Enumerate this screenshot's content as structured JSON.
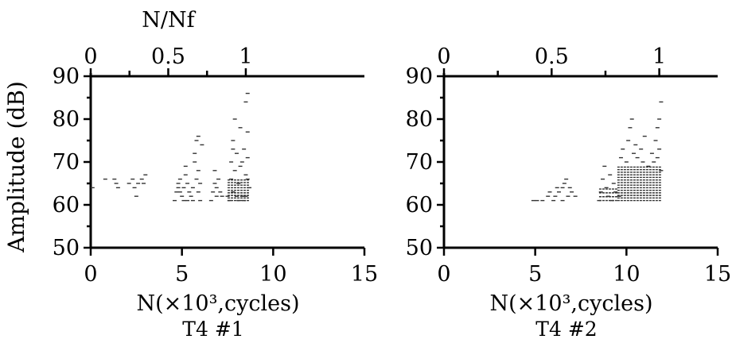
{
  "chart_data": [
    {
      "type": "scatter",
      "title": "T4 #1",
      "top_axis_label": "N/Nf",
      "top_ticks": [
        "0",
        "0.5",
        "1"
      ],
      "top_ticks_pos": [
        0,
        4.25,
        8.5
      ],
      "xlabel": "N(×10³,cycles)",
      "ylabel": "Amplitude (dB)",
      "xlim": [
        0,
        15
      ],
      "ylim": [
        50,
        90
      ],
      "xticks": [
        0,
        5,
        10,
        15
      ],
      "yticks": [
        50,
        60,
        70,
        80,
        90
      ],
      "points": [
        [
          0.1,
          64
        ],
        [
          0.8,
          66
        ],
        [
          1.3,
          66
        ],
        [
          1.4,
          65
        ],
        [
          1.5,
          64
        ],
        [
          2.1,
          65
        ],
        [
          2.3,
          66
        ],
        [
          2.4,
          64
        ],
        [
          2.5,
          62
        ],
        [
          2.6,
          65
        ],
        [
          2.8,
          66
        ],
        [
          2.9,
          65
        ],
        [
          3.0,
          67
        ],
        [
          4.6,
          61
        ],
        [
          4.7,
          63
        ],
        [
          4.8,
          64
        ],
        [
          4.8,
          65
        ],
        [
          4.9,
          66
        ],
        [
          4.9,
          63
        ],
        [
          5.0,
          62
        ],
        [
          5.1,
          61
        ],
        [
          5.1,
          64
        ],
        [
          5.2,
          67
        ],
        [
          5.2,
          69
        ],
        [
          5.3,
          61
        ],
        [
          5.3,
          65
        ],
        [
          5.4,
          63
        ],
        [
          5.5,
          62
        ],
        [
          5.6,
          61
        ],
        [
          5.6,
          64
        ],
        [
          5.7,
          70
        ],
        [
          5.7,
          72
        ],
        [
          5.8,
          66
        ],
        [
          5.8,
          75
        ],
        [
          5.9,
          63
        ],
        [
          5.9,
          68
        ],
        [
          5.9,
          76
        ],
        [
          6.0,
          61
        ],
        [
          6.0,
          65
        ],
        [
          6.1,
          74
        ],
        [
          6.6,
          61
        ],
        [
          6.7,
          63
        ],
        [
          6.8,
          65
        ],
        [
          6.8,
          68
        ],
        [
          6.9,
          62
        ],
        [
          6.9,
          64
        ],
        [
          7.0,
          66
        ],
        [
          7.1,
          63
        ],
        [
          7.2,
          62
        ],
        [
          7.5,
          62
        ],
        [
          7.6,
          61
        ],
        [
          7.7,
          66
        ],
        [
          7.7,
          70
        ],
        [
          7.8,
          73
        ],
        [
          7.8,
          63
        ],
        [
          7.8,
          75
        ],
        [
          7.9,
          68
        ],
        [
          7.9,
          80
        ],
        [
          8.0,
          62
        ],
        [
          8.0,
          72
        ],
        [
          8.1,
          61
        ],
        [
          8.1,
          65
        ],
        [
          8.2,
          69
        ],
        [
          8.2,
          78
        ],
        [
          8.3,
          62
        ],
        [
          8.3,
          70
        ],
        [
          8.4,
          61
        ],
        [
          8.4,
          73
        ],
        [
          8.5,
          62
        ],
        [
          8.5,
          67
        ],
        [
          8.5,
          84
        ],
        [
          8.6,
          66
        ],
        [
          8.6,
          77
        ],
        [
          8.6,
          86
        ],
        [
          8.6,
          71
        ],
        [
          8.7,
          64
        ]
      ],
      "dense": [
        {
          "x0": 7.5,
          "x1": 8.7,
          "y0": 61,
          "y1": 66,
          "step": 0.6
        }
      ]
    },
    {
      "type": "scatter",
      "title": "T4 #2",
      "top_ticks": [
        "0",
        "0.5",
        "1"
      ],
      "top_ticks_pos": [
        0,
        5.9,
        11.8
      ],
      "xlabel": "N(×10³,cycles)",
      "xlim": [
        0,
        15
      ],
      "ylim": [
        50,
        90
      ],
      "xticks": [
        0,
        5,
        10,
        15
      ],
      "yticks": [
        50,
        60,
        70,
        80,
        90
      ],
      "points": [
        [
          4.9,
          61
        ],
        [
          5.1,
          61
        ],
        [
          5.4,
          61
        ],
        [
          5.7,
          62
        ],
        [
          5.8,
          63
        ],
        [
          6.0,
          61
        ],
        [
          6.1,
          62
        ],
        [
          6.2,
          64
        ],
        [
          6.3,
          63
        ],
        [
          6.5,
          61
        ],
        [
          6.5,
          64
        ],
        [
          6.6,
          65
        ],
        [
          6.7,
          66
        ],
        [
          6.8,
          62
        ],
        [
          6.9,
          64
        ],
        [
          7.0,
          63
        ],
        [
          7.2,
          62
        ],
        [
          8.5,
          61
        ],
        [
          8.6,
          63
        ],
        [
          8.7,
          66
        ],
        [
          8.8,
          69
        ],
        [
          8.9,
          64
        ],
        [
          9.0,
          62
        ],
        [
          9.1,
          67
        ],
        [
          9.2,
          61
        ],
        [
          9.3,
          65
        ],
        [
          9.4,
          63
        ],
        [
          9.6,
          62
        ],
        [
          9.7,
          71
        ],
        [
          9.8,
          73
        ],
        [
          10.0,
          70
        ],
        [
          10.1,
          75
        ],
        [
          10.2,
          78
        ],
        [
          10.3,
          80
        ],
        [
          10.4,
          72
        ],
        [
          10.5,
          74
        ],
        [
          10.6,
          71
        ],
        [
          10.8,
          73
        ],
        [
          10.9,
          70
        ],
        [
          11.0,
          76
        ],
        [
          11.2,
          69
        ],
        [
          11.4,
          72
        ],
        [
          11.5,
          70
        ],
        [
          11.6,
          75
        ],
        [
          11.7,
          78
        ],
        [
          11.8,
          80
        ],
        [
          11.9,
          84
        ],
        [
          11.8,
          73
        ],
        [
          11.7,
          71
        ],
        [
          11.9,
          68
        ]
      ],
      "dense": [
        {
          "x0": 9.5,
          "x1": 11.9,
          "y0": 61,
          "y1": 69,
          "step": 0.6
        },
        {
          "x0": 8.5,
          "x1": 9.5,
          "y0": 61,
          "y1": 64,
          "step": 0.9
        }
      ]
    }
  ]
}
